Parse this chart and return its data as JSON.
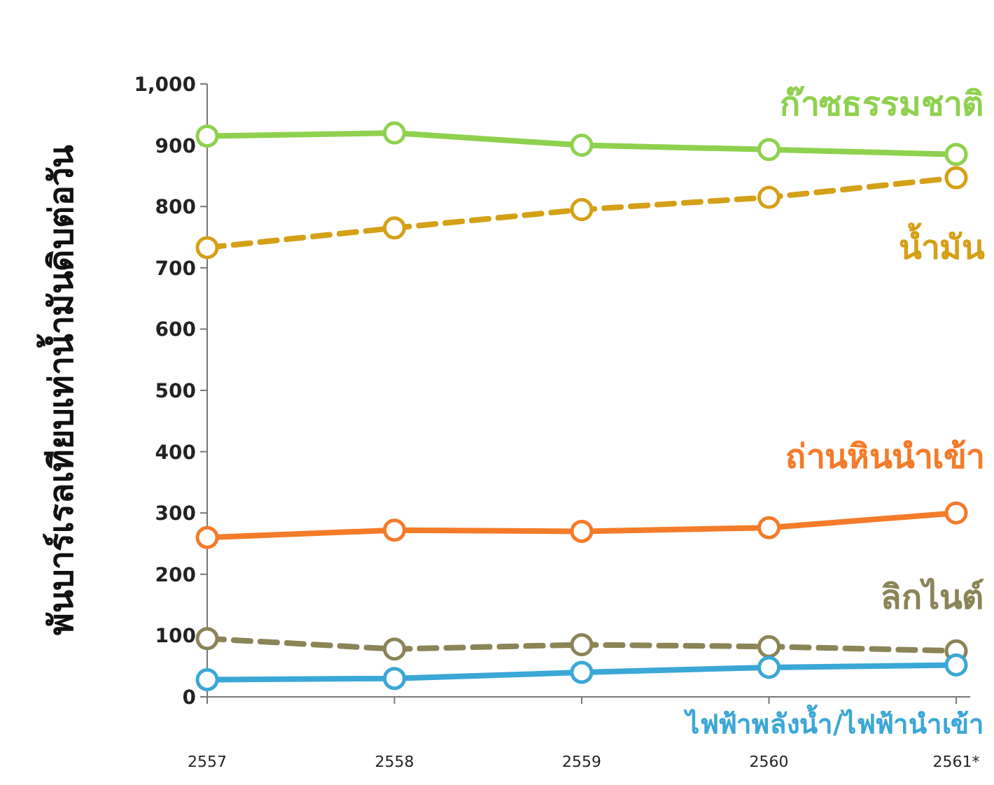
{
  "chart_data": {
    "type": "line",
    "ylabel": "พันบาร์เรลเทียบเท่าน้ำมันดิบต่อวัน",
    "categories": [
      "2557",
      "2558",
      "2559",
      "2560",
      "2561*"
    ],
    "ylim": [
      0,
      1000
    ],
    "yticks": [
      0,
      100,
      200,
      300,
      400,
      500,
      600,
      700,
      800,
      900,
      {
        "value": 1000,
        "label": "1,000"
      }
    ],
    "marker": "circle",
    "grid": false,
    "series": [
      {
        "name": "ก๊าซธรรมชาติ",
        "color": "#8fd14f",
        "line_style": "solid",
        "values": [
          915,
          920,
          900,
          893,
          885
        ]
      },
      {
        "name": "น้ำมัน",
        "color": "#d4a017",
        "line_style": "dashed",
        "values": [
          733,
          765,
          795,
          815,
          847
        ]
      },
      {
        "name": "ถ่านหินนำเข้า",
        "color": "#f47b2a",
        "line_style": "solid",
        "values": [
          260,
          272,
          270,
          276,
          300
        ]
      },
      {
        "name": "ลิกไนต์",
        "color": "#8a8457",
        "line_style": "dashed",
        "values": [
          95,
          78,
          85,
          82,
          75
        ]
      },
      {
        "name": "ไฟฟ้าพลังน้ำ/ไฟฟ้านำเข้า",
        "color": "#3ba7d6",
        "line_style": "solid",
        "values": [
          28,
          30,
          40,
          48,
          52
        ]
      }
    ]
  }
}
